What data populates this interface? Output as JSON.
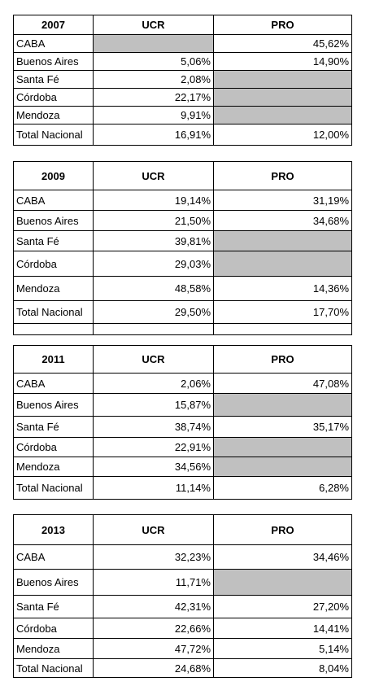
{
  "headers": {
    "ucr": "UCR",
    "pro": "PRO"
  },
  "tables": [
    {
      "year": "2007",
      "rows": [
        {
          "name": "CABA",
          "ucr": "",
          "pro": "45,62%"
        },
        {
          "name": "Buenos Aires",
          "ucr": "5,06%",
          "pro": "14,90%"
        },
        {
          "name": "Santa Fé",
          "ucr": "2,08%",
          "pro": ""
        },
        {
          "name": "Córdoba",
          "ucr": "22,17%",
          "pro": ""
        },
        {
          "name": "Mendoza",
          "ucr": "9,91%",
          "pro": ""
        },
        {
          "name": "Total Nacional",
          "ucr": "16,91%",
          "pro": "12,00%"
        }
      ]
    },
    {
      "year": "2009",
      "rows": [
        {
          "name": "CABA",
          "ucr": "19,14%",
          "pro": "31,19%"
        },
        {
          "name": "Buenos Aires",
          "ucr": "21,50%",
          "pro": "34,68%"
        },
        {
          "name": "Santa Fé",
          "ucr": "39,81%",
          "pro": ""
        },
        {
          "name": "Córdoba",
          "ucr": "29,03%",
          "pro": ""
        },
        {
          "name": "Mendoza",
          "ucr": "48,58%",
          "pro": "14,36%"
        },
        {
          "name": "Total Nacional",
          "ucr": "29,50%",
          "pro": "17,70%"
        },
        {
          "name": "",
          "ucr": "",
          "pro": ""
        }
      ]
    },
    {
      "year": "2011",
      "rows": [
        {
          "name": "CABA",
          "ucr": "2,06%",
          "pro": "47,08%"
        },
        {
          "name": "Buenos Aires",
          "ucr": "15,87%",
          "pro": ""
        },
        {
          "name": "Santa Fé",
          "ucr": "38,74%",
          "pro": "35,17%"
        },
        {
          "name": "Córdoba",
          "ucr": "22,91%",
          "pro": ""
        },
        {
          "name": "Mendoza",
          "ucr": "34,56%",
          "pro": ""
        },
        {
          "name": "Total Nacional",
          "ucr": "11,14%",
          "pro": "6,28%"
        }
      ]
    },
    {
      "year": "2013",
      "rows": [
        {
          "name": "CABA",
          "ucr": "32,23%",
          "pro": "34,46%"
        },
        {
          "name": "Buenos Aires",
          "ucr": "11,71%",
          "pro": ""
        },
        {
          "name": "Santa Fé",
          "ucr": "42,31%",
          "pro": "27,20%"
        },
        {
          "name": "Córdoba",
          "ucr": "22,66%",
          "pro": "14,41%"
        },
        {
          "name": "Mendoza",
          "ucr": "47,72%",
          "pro": "5,14%"
        },
        {
          "name": "Total Nacional",
          "ucr": "24,68%",
          "pro": "8,04%"
        }
      ]
    }
  ]
}
